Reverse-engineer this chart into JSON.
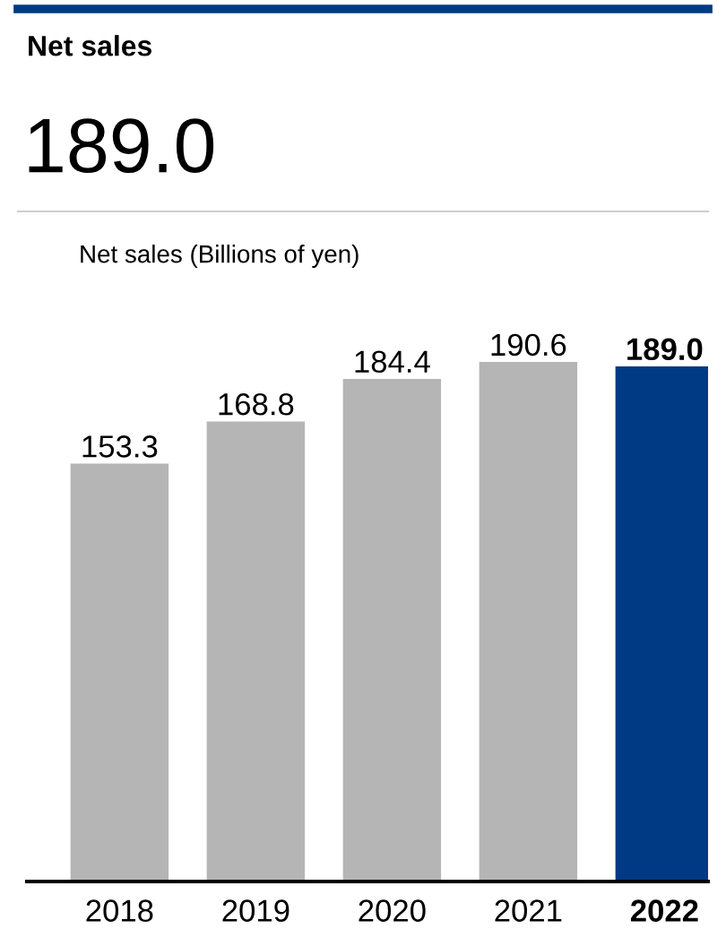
{
  "chart_data": {
    "type": "bar",
    "title": "Net sales",
    "subtitle": "189.0",
    "ylabel": "Net sales (Billions of yen)",
    "categories": [
      "2018",
      "2019",
      "2020",
      "2021",
      "2022"
    ],
    "values": [
      153.3,
      168.8,
      184.4,
      190.6,
      189.0
    ],
    "colors": [
      "#b5b5b5",
      "#b5b5b5",
      "#b5b5b5",
      "#b5b5b5",
      "#003a84"
    ],
    "value_labels": [
      "153.3",
      "168.8",
      "184.4",
      "190.6",
      "189.0"
    ],
    "grid": false,
    "legend": false
  }
}
